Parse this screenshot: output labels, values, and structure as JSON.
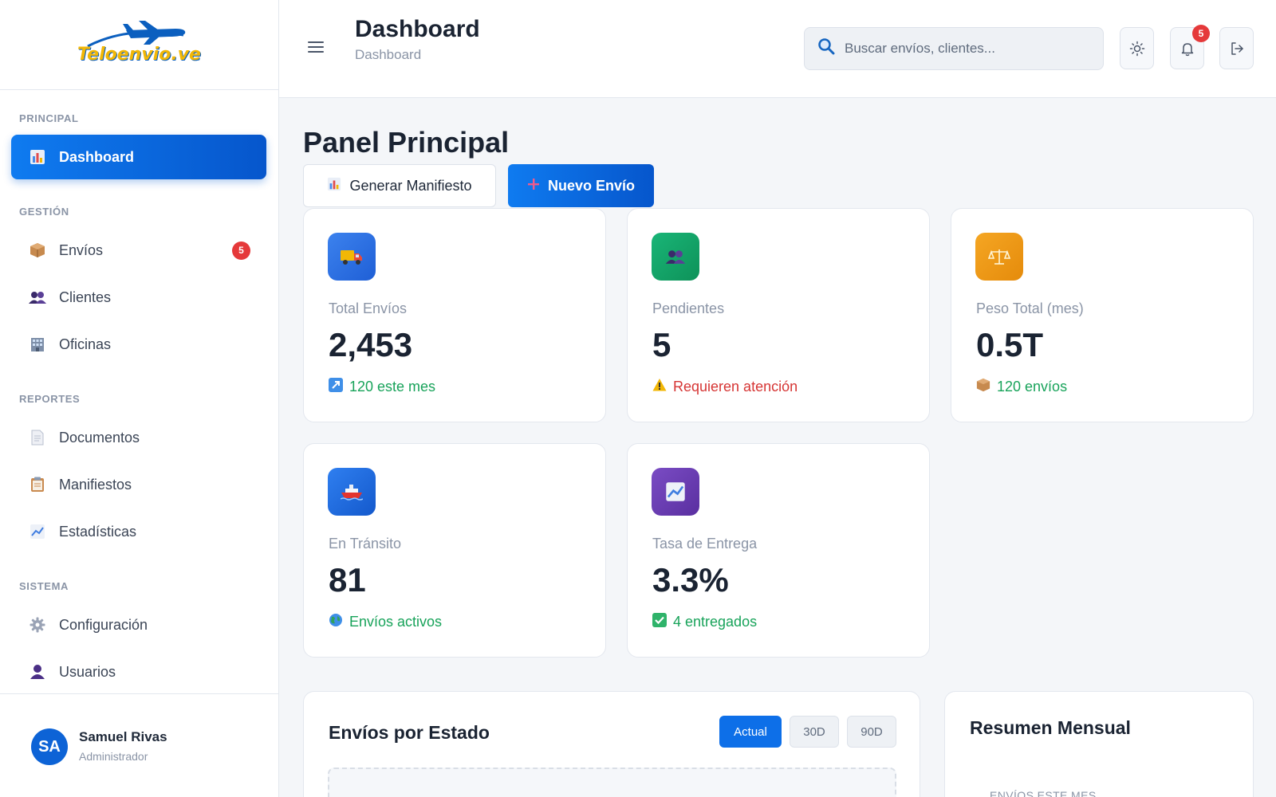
{
  "brand": {
    "logo_text": "Teloenvio.ve"
  },
  "sidebar": {
    "sections": {
      "principal": "PRINCIPAL",
      "gestion": "GESTIÓN",
      "reportes": "REPORTES",
      "sistema": "SISTEMA"
    },
    "items": {
      "dashboard": {
        "label": "Dashboard",
        "icon": "bar-chart-icon"
      },
      "envios": {
        "label": "Envíos",
        "icon": "package-icon",
        "badge": "5"
      },
      "clientes": {
        "label": "Clientes",
        "icon": "users-icon"
      },
      "oficinas": {
        "label": "Oficinas",
        "icon": "building-icon"
      },
      "documentos": {
        "label": "Documentos",
        "icon": "document-icon"
      },
      "manifiestos": {
        "label": "Manifiestos",
        "icon": "clipboard-icon"
      },
      "estadisticas": {
        "label": "Estadísticas",
        "icon": "trend-chart-icon"
      },
      "configuracion": {
        "label": "Configuración",
        "icon": "gear-icon"
      },
      "usuarios": {
        "label": "Usuarios",
        "icon": "user-icon"
      }
    },
    "user": {
      "initials": "SA",
      "name": "Samuel Rivas",
      "role": "Administrador"
    }
  },
  "header": {
    "title": "Dashboard",
    "breadcrumb": "Dashboard",
    "search_placeholder": "Buscar envíos, clientes...",
    "notifications_count": "5"
  },
  "main": {
    "title": "Panel Principal",
    "actions": {
      "generate": "Generar Manifiesto",
      "new": "Nuevo Envío"
    },
    "stats": [
      {
        "label": "Total Envíos",
        "value": "2,453",
        "note": "120 este mes",
        "note_status": "positive",
        "icon": "truck-icon",
        "color": "#2f6fe0"
      },
      {
        "label": "Pendientes",
        "value": "5",
        "note": "Requieren atención",
        "note_status": "warning",
        "icon": "users-icon",
        "color": "#14a36a"
      },
      {
        "label": "Peso Total (mes)",
        "value": "0.5T",
        "note": "120 envíos",
        "note_status": "positive",
        "icon": "scale-icon",
        "color": "#f0a018"
      },
      {
        "label": "En Tránsito",
        "value": "81",
        "note": "Envíos activos",
        "note_status": "positive",
        "icon": "ship-icon",
        "color": "#1d6fe5"
      },
      {
        "label": "Tasa de Entrega",
        "value": "3.3%",
        "note": "4 entregados",
        "note_status": "positive",
        "icon": "chart-icon",
        "color": "#6b3fb8"
      }
    ],
    "status_panel": {
      "title": "Envíos por Estado",
      "ranges": [
        "Actual",
        "30D",
        "90D"
      ],
      "selected_range": "Actual"
    },
    "monthly_panel": {
      "title": "Resumen Mensual",
      "label": "ENVÍOS ESTE MES"
    }
  }
}
